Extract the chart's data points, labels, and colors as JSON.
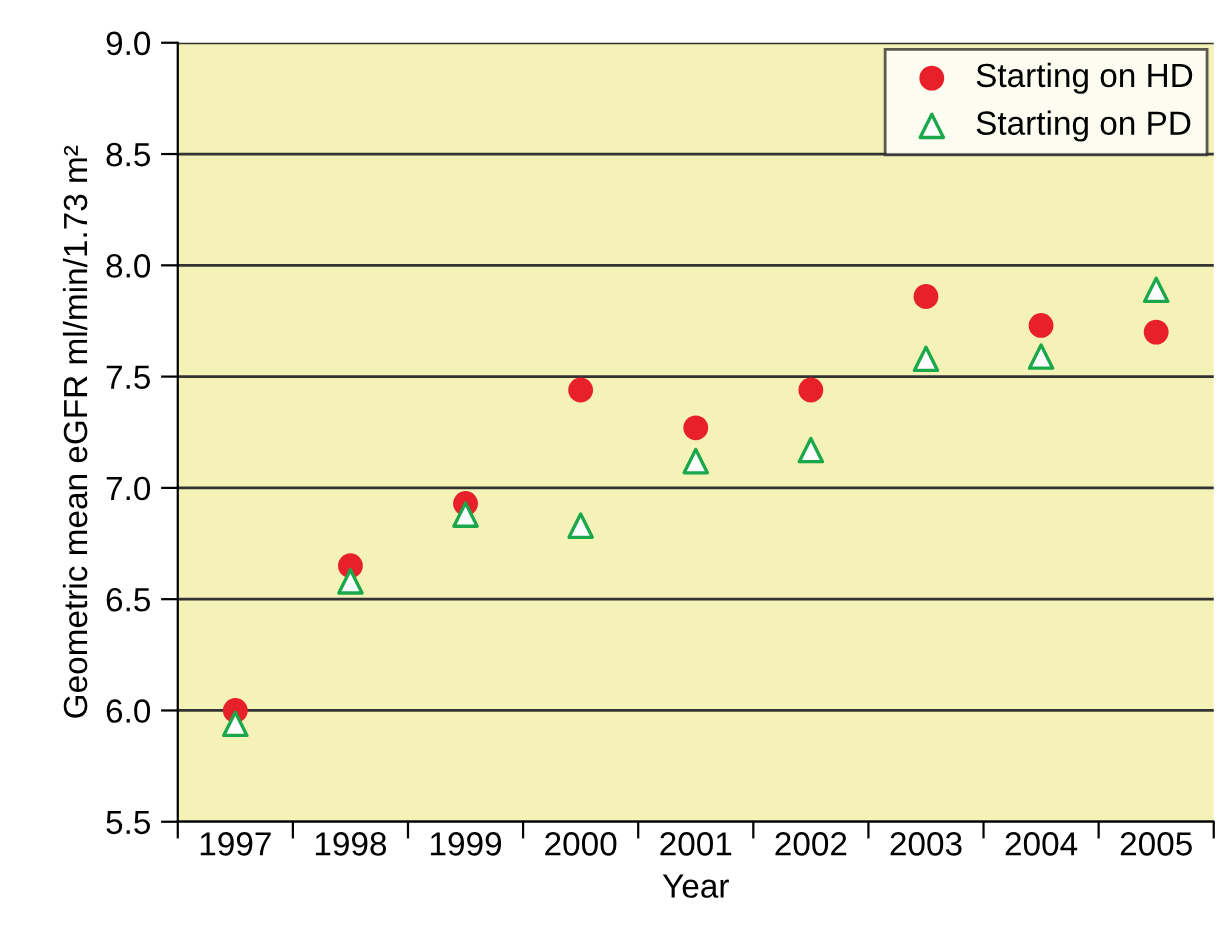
{
  "chart_data": {
    "type": "scatter",
    "xlabel": "Year",
    "ylabel": "Geometric mean eGFR ml/min/1.73 m²",
    "categories": [
      "1997",
      "1998",
      "1999",
      "2000",
      "2001",
      "2002",
      "2003",
      "2004",
      "2005"
    ],
    "series": [
      {
        "name": "Starting on HD",
        "color": "#e8202a",
        "marker": "circle",
        "values": [
          6.0,
          6.65,
          6.93,
          7.44,
          7.27,
          7.44,
          7.86,
          7.73,
          7.7
        ]
      },
      {
        "name": "Starting on PD",
        "color": "#1aa84a",
        "marker": "triangle",
        "values": [
          5.94,
          6.58,
          6.88,
          6.83,
          7.12,
          7.17,
          7.58,
          7.59,
          7.89
        ]
      }
    ],
    "ylim": [
      5.5,
      9.0
    ],
    "yticks": [
      5.5,
      {
        "value": 6,
        "label": "6.0"
      },
      6.5,
      {
        "value": 7,
        "label": "7.0"
      },
      7.5,
      {
        "value": 8,
        "label": "8.0"
      },
      8.5,
      {
        "value": 9,
        "label": "9.0"
      }
    ],
    "grid": "y",
    "legend": "top right"
  }
}
